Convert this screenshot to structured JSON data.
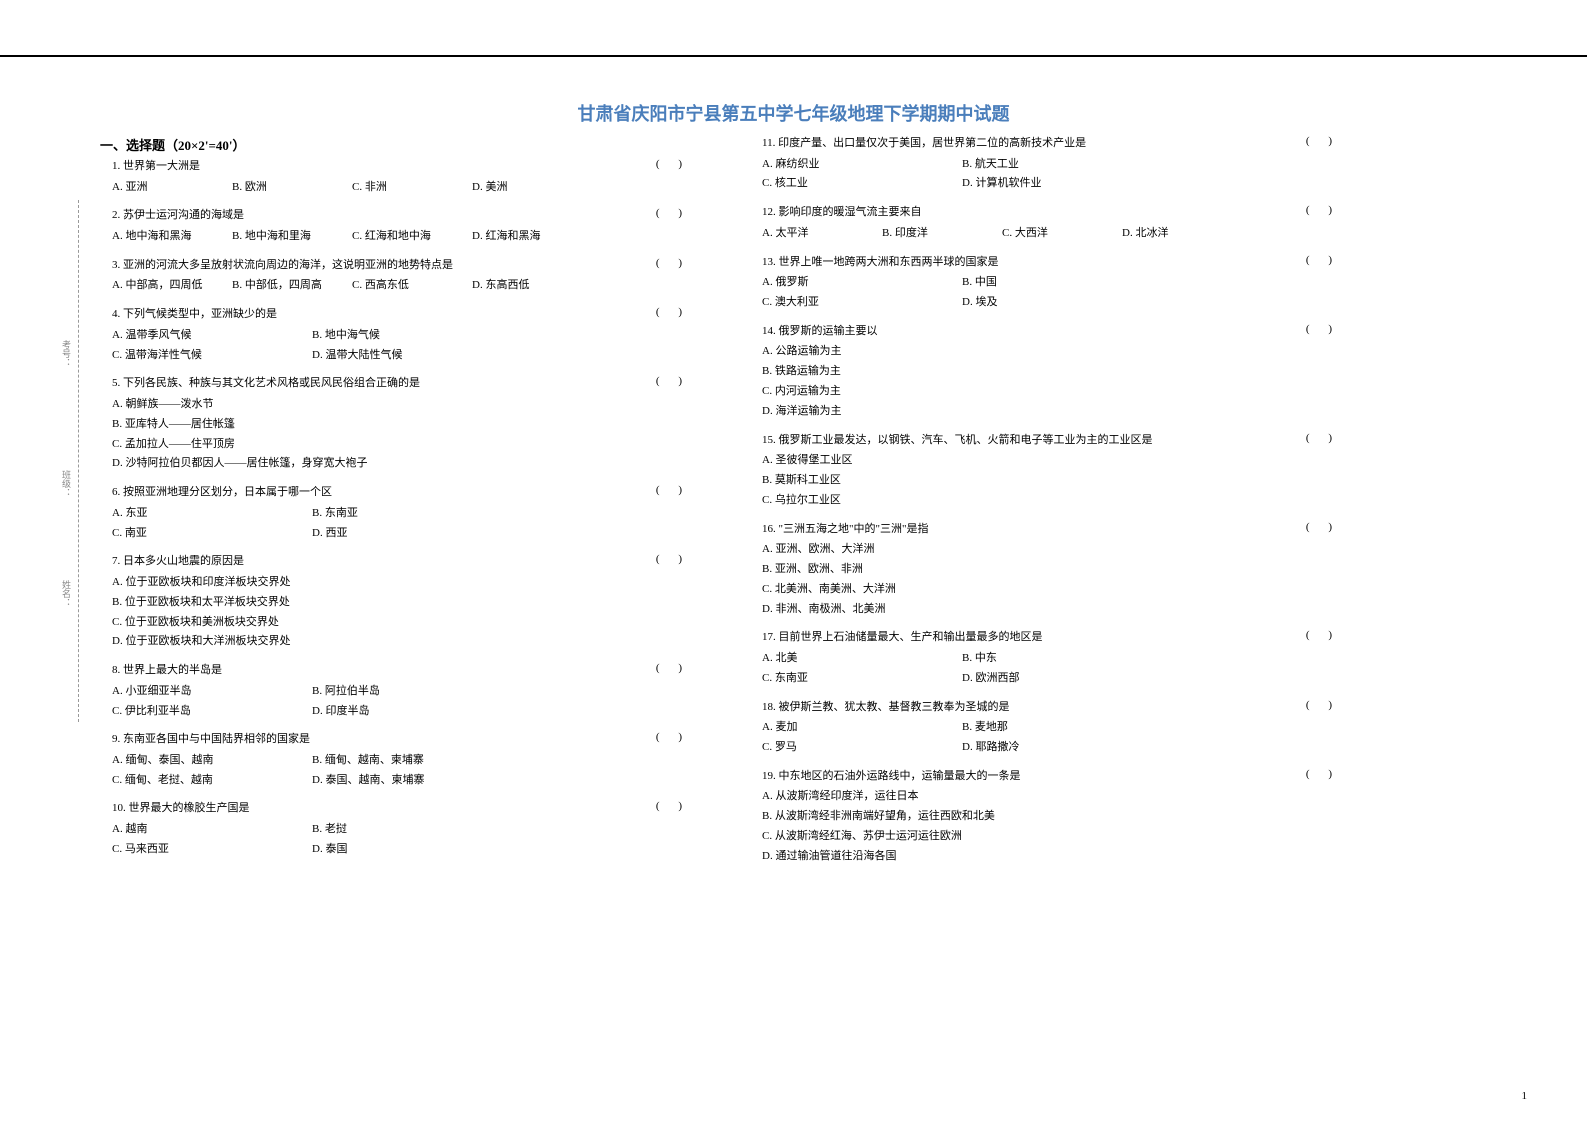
{
  "title": "甘肃省庆阳市宁县第五中学七年级地理下学期期中试题",
  "section_header": "一、选择题（20×2'=40'）",
  "page_number": "1",
  "margin_labels": [
    "考号：",
    "班级：",
    "姓名："
  ],
  "questions_left": [
    {
      "num": "1",
      "stem": "世界第一大洲是",
      "options": [
        "A. 亚洲",
        "B. 欧洲",
        "C. 非洲",
        "D. 美洲"
      ],
      "layout": "row4"
    },
    {
      "num": "2",
      "stem": "苏伊士运河沟通的海域是",
      "options": [
        "A. 地中海和黑海",
        "B. 地中海和里海",
        "C. 红海和地中海",
        "D. 红海和黑海"
      ],
      "layout": "row4"
    },
    {
      "num": "3",
      "stem": "亚洲的河流大多呈放射状流向周边的海洋，这说明亚洲的地势特点是",
      "options": [
        "A. 中部高，四周低",
        "B. 中部低，四周高",
        "C. 西高东低",
        "D. 东高西低"
      ],
      "layout": "row4"
    },
    {
      "num": "4",
      "stem": "下列气候类型中，亚洲缺少的是",
      "options": [
        "A. 温带季风气候",
        "B. 地中海气候",
        "C. 温带海洋性气候",
        "D. 温带大陆性气候"
      ],
      "layout": "row2"
    },
    {
      "num": "5",
      "stem": "下列各民族、种族与其文化艺术风格或民风民俗组合正确的是",
      "options": [
        "A. 朝鲜族——泼水节",
        "B. 亚库特人——居住帐篷",
        "C. 孟加拉人——住平顶房",
        "D. 沙特阿拉伯贝都因人——居住帐篷，身穿宽大袍子"
      ],
      "layout": "col"
    },
    {
      "num": "6",
      "stem": "按照亚洲地理分区划分，日本属于哪一个区",
      "options": [
        "A. 东亚",
        "B. 东南亚",
        "C. 南亚",
        "D. 西亚"
      ],
      "layout": "row2"
    },
    {
      "num": "7",
      "stem": "日本多火山地震的原因是",
      "options": [
        "A. 位于亚欧板块和印度洋板块交界处",
        "B. 位于亚欧板块和太平洋板块交界处",
        "C. 位于亚欧板块和美洲板块交界处",
        "D. 位于亚欧板块和大洋洲板块交界处"
      ],
      "layout": "col"
    },
    {
      "num": "8",
      "stem": "世界上最大的半岛是",
      "options": [
        "A. 小亚细亚半岛",
        "B. 阿拉伯半岛",
        "C. 伊比利亚半岛",
        "D. 印度半岛"
      ],
      "layout": "row2"
    },
    {
      "num": "9",
      "stem": "东南亚各国中与中国陆界相邻的国家是",
      "options": [
        "A. 缅甸、泰国、越南",
        "B. 缅甸、越南、柬埔寨",
        "C. 缅甸、老挝、越南",
        "D. 泰国、越南、柬埔寨"
      ],
      "layout": "row2"
    },
    {
      "num": "10",
      "stem": "世界最大的橡胶生产国是",
      "options": [
        "A. 越南",
        "B. 老挝",
        "C. 马来西亚",
        "D. 泰国"
      ],
      "layout": "row2"
    }
  ],
  "questions_right": [
    {
      "num": "11",
      "stem": "印度产量、出口量仅次于美国，居世界第二位的高新技术产业是",
      "options": [
        "A. 麻纺织业",
        "B. 航天工业",
        "C. 核工业",
        "D. 计算机软件业"
      ],
      "layout": "row2"
    },
    {
      "num": "12",
      "stem": "影响印度的暖湿气流主要来自",
      "options": [
        "A. 太平洋",
        "B. 印度洋",
        "C. 大西洋",
        "D. 北冰洋"
      ],
      "layout": "row4"
    },
    {
      "num": "13",
      "stem": "世界上唯一地跨两大洲和东西两半球的国家是",
      "options": [
        "A. 俄罗斯",
        "B. 中国",
        "C. 澳大利亚",
        "D. 埃及"
      ],
      "layout": "row2"
    },
    {
      "num": "14",
      "stem": "俄罗斯的运输主要以",
      "options": [
        "A. 公路运输为主",
        "B. 铁路运输为主",
        "C. 内河运输为主",
        "D. 海洋运输为主"
      ],
      "layout": "col"
    },
    {
      "num": "15",
      "stem": "俄罗斯工业最发达，以钢铁、汽车、飞机、火箭和电子等工业为主的工业区是",
      "options": [
        "A. 圣彼得堡工业区",
        "B. 莫斯科工业区",
        "C. 乌拉尔工业区"
      ],
      "layout": "col"
    },
    {
      "num": "16",
      "stem": "\"三洲五海之地\"中的\"三洲\"是指",
      "options": [
        "A. 亚洲、欧洲、大洋洲",
        "B. 亚洲、欧洲、非洲",
        "C. 北美洲、南美洲、大洋洲",
        "D. 非洲、南极洲、北美洲"
      ],
      "layout": "col"
    },
    {
      "num": "17",
      "stem": "目前世界上石油储量最大、生产和输出量最多的地区是",
      "options": [
        "A. 北美",
        "B. 中东",
        "C. 东南亚",
        "D. 欧洲西部"
      ],
      "layout": "row2"
    },
    {
      "num": "18",
      "stem": "被伊斯兰教、犹太教、基督教三教奉为圣城的是",
      "options": [
        "A. 麦加",
        "B. 麦地那",
        "C. 罗马",
        "D. 耶路撒冷"
      ],
      "layout": "row2"
    },
    {
      "num": "19",
      "stem": "中东地区的石油外运路线中，运输量最大的一条是",
      "options": [
        "A. 从波斯湾经印度洋，运往日本",
        "B. 从波斯湾经非洲南端好望角，运往西欧和北美",
        "C. 从波斯湾经红海、苏伊士运河运往欧洲",
        "D. 通过输油管道往沿海各国"
      ],
      "layout": "col"
    }
  ]
}
